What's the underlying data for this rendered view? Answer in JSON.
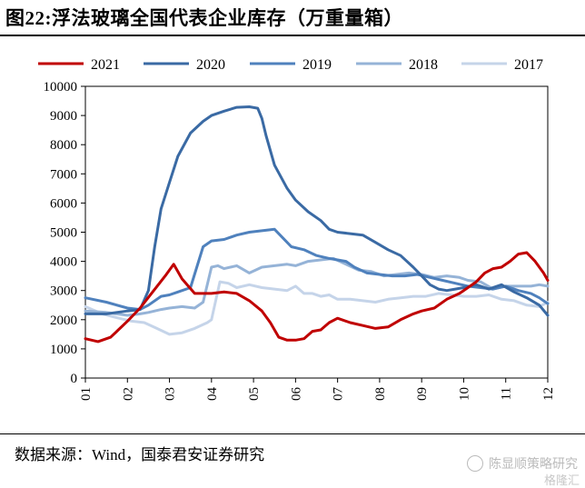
{
  "figure": {
    "title": "图22:浮法玻璃全国代表企业库存（万重量箱）",
    "source": "数据来源：Wind，国泰君安证券研究",
    "watermark": "陈显顺策略研究",
    "watermark_secondary": "格隆汇"
  },
  "chart_data": {
    "type": "line",
    "title": "图22:浮法玻璃全国代表企业库存（万重量箱）",
    "xlabel": "",
    "ylabel": "",
    "x_ticks": [
      "01",
      "02",
      "03",
      "04",
      "05",
      "06",
      "07",
      "08",
      "09",
      "10",
      "11",
      "12"
    ],
    "y_ticks": [
      0,
      1000,
      2000,
      3000,
      4000,
      5000,
      6000,
      7000,
      8000,
      9000,
      10000
    ],
    "xlim": [
      1,
      12
    ],
    "ylim": [
      0,
      10000
    ],
    "legend_position": "top",
    "grid": false,
    "series": [
      {
        "name": "2021",
        "color": "#c00000",
        "width": 3,
        "x": [
          1.0,
          1.3,
          1.6,
          2.0,
          2.3,
          2.6,
          2.9,
          3.1,
          3.3,
          3.6,
          4.0,
          4.3,
          4.6,
          4.9,
          5.2,
          5.4,
          5.6,
          5.8,
          6.0,
          6.2,
          6.4,
          6.6,
          6.8,
          7.0,
          7.3,
          7.6,
          7.9,
          8.2,
          8.5,
          8.8,
          9.0,
          9.3,
          9.6,
          9.9,
          10.1,
          10.3,
          10.5,
          10.7,
          10.9,
          11.1,
          11.3,
          11.5,
          11.7,
          11.9,
          12.0
        ],
        "y": [
          1350,
          1250,
          1400,
          1950,
          2400,
          2950,
          3500,
          3900,
          3400,
          2900,
          2900,
          2950,
          2900,
          2650,
          2300,
          1900,
          1400,
          1300,
          1300,
          1350,
          1600,
          1650,
          1900,
          2050,
          1900,
          1800,
          1700,
          1750,
          2000,
          2200,
          2300,
          2400,
          2700,
          2900,
          3100,
          3300,
          3600,
          3750,
          3800,
          4000,
          4250,
          4300,
          4000,
          3600,
          3350
        ]
      },
      {
        "name": "2020",
        "color": "#3a6aa4",
        "width": 3,
        "x": [
          1.0,
          1.5,
          2.0,
          2.3,
          2.5,
          2.65,
          2.8,
          3.0,
          3.2,
          3.5,
          3.8,
          4.0,
          4.3,
          4.6,
          4.9,
          5.1,
          5.2,
          5.3,
          5.5,
          5.8,
          6.0,
          6.3,
          6.6,
          6.8,
          7.0,
          7.3,
          7.6,
          7.9,
          8.2,
          8.5,
          8.8,
          9.0,
          9.2,
          9.4,
          9.6,
          9.8,
          10.0,
          10.3,
          10.6,
          10.9,
          11.2,
          11.5,
          11.8,
          12.0
        ],
        "y": [
          2200,
          2200,
          2300,
          2350,
          3000,
          4500,
          5800,
          6700,
          7600,
          8400,
          8800,
          9000,
          9150,
          9280,
          9300,
          9250,
          8900,
          8300,
          7300,
          6500,
          6100,
          5700,
          5400,
          5100,
          5000,
          4950,
          4900,
          4650,
          4400,
          4200,
          3800,
          3500,
          3200,
          3050,
          3000,
          3050,
          3100,
          3200,
          3050,
          3200,
          2950,
          2750,
          2500,
          2150
        ]
      },
      {
        "name": "2019",
        "color": "#4f81bd",
        "width": 3,
        "x": [
          1.0,
          1.5,
          2.0,
          2.3,
          2.5,
          2.8,
          3.0,
          3.2,
          3.5,
          3.8,
          4.0,
          4.3,
          4.6,
          4.9,
          5.2,
          5.5,
          5.7,
          5.9,
          6.2,
          6.5,
          6.8,
          7.0,
          7.2,
          7.4,
          7.7,
          8.0,
          8.3,
          8.6,
          8.9,
          9.2,
          9.5,
          9.8,
          10.1,
          10.4,
          10.7,
          11.0,
          11.3,
          11.6,
          11.8,
          12.0
        ],
        "y": [
          2750,
          2600,
          2400,
          2350,
          2500,
          2800,
          2850,
          2950,
          3100,
          4500,
          4700,
          4750,
          4900,
          5000,
          5050,
          5100,
          4800,
          4500,
          4400,
          4200,
          4100,
          4050,
          4000,
          3800,
          3600,
          3550,
          3500,
          3500,
          3550,
          3450,
          3350,
          3250,
          3150,
          3100,
          3050,
          3150,
          3000,
          2900,
          2750,
          2550
        ]
      },
      {
        "name": "2018",
        "color": "#95b3d7",
        "width": 3,
        "x": [
          1.0,
          1.5,
          2.0,
          2.3,
          2.5,
          2.8,
          3.0,
          3.3,
          3.6,
          3.8,
          4.0,
          4.15,
          4.3,
          4.6,
          4.9,
          5.2,
          5.5,
          5.8,
          6.0,
          6.3,
          6.6,
          6.9,
          7.2,
          7.5,
          7.8,
          8.1,
          8.4,
          8.7,
          9.0,
          9.3,
          9.6,
          9.9,
          10.1,
          10.4,
          10.7,
          11.0,
          11.3,
          11.6,
          11.8,
          12.0
        ],
        "y": [
          2300,
          2250,
          2150,
          2200,
          2250,
          2350,
          2400,
          2450,
          2400,
          2600,
          3800,
          3850,
          3750,
          3850,
          3600,
          3800,
          3850,
          3900,
          3850,
          4000,
          4050,
          4100,
          3900,
          3700,
          3650,
          3500,
          3550,
          3600,
          3550,
          3450,
          3500,
          3450,
          3350,
          3300,
          3050,
          3150,
          3150,
          3150,
          3200,
          3150
        ]
      },
      {
        "name": "2017",
        "color": "#c5d4e9",
        "width": 3,
        "x": [
          1.0,
          1.4,
          1.8,
          2.1,
          2.4,
          2.7,
          3.0,
          3.3,
          3.6,
          3.9,
          4.0,
          4.2,
          4.4,
          4.6,
          4.9,
          5.2,
          5.5,
          5.8,
          6.0,
          6.2,
          6.4,
          6.6,
          6.8,
          7.0,
          7.3,
          7.6,
          7.9,
          8.2,
          8.5,
          8.8,
          9.1,
          9.4,
          9.7,
          10.0,
          10.3,
          10.6,
          10.9,
          11.2,
          11.5,
          11.8,
          12.0
        ],
        "y": [
          2450,
          2200,
          2050,
          1950,
          1900,
          1700,
          1500,
          1550,
          1700,
          1900,
          2000,
          3300,
          3250,
          3100,
          3200,
          3100,
          3050,
          3000,
          3150,
          2900,
          2900,
          2800,
          2850,
          2700,
          2700,
          2650,
          2600,
          2700,
          2750,
          2800,
          2800,
          2900,
          2850,
          2800,
          2800,
          2850,
          2700,
          2650,
          2500,
          2450,
          2600
        ]
      }
    ]
  }
}
